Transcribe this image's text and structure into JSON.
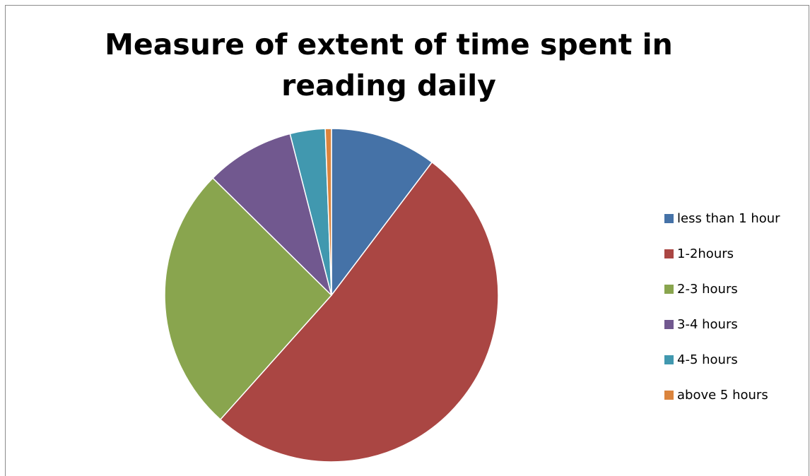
{
  "chart_data": {
    "type": "pie",
    "title": "Measure of extent of time spent in reading daily",
    "categories": [
      "less than 1 hour",
      "1-2hours",
      "2-3 hours",
      "3-4 hours",
      "4-5 hours",
      "above 5 hours"
    ],
    "values": [
      10.3,
      51.3,
      25.8,
      8.6,
      3.4,
      0.6
    ],
    "colors": [
      "#4572a7",
      "#aa4643",
      "#89a54e",
      "#71588f",
      "#4198af",
      "#db843d"
    ],
    "start_angle_deg": 0,
    "direction": "clockwise",
    "legend_position": "right"
  }
}
